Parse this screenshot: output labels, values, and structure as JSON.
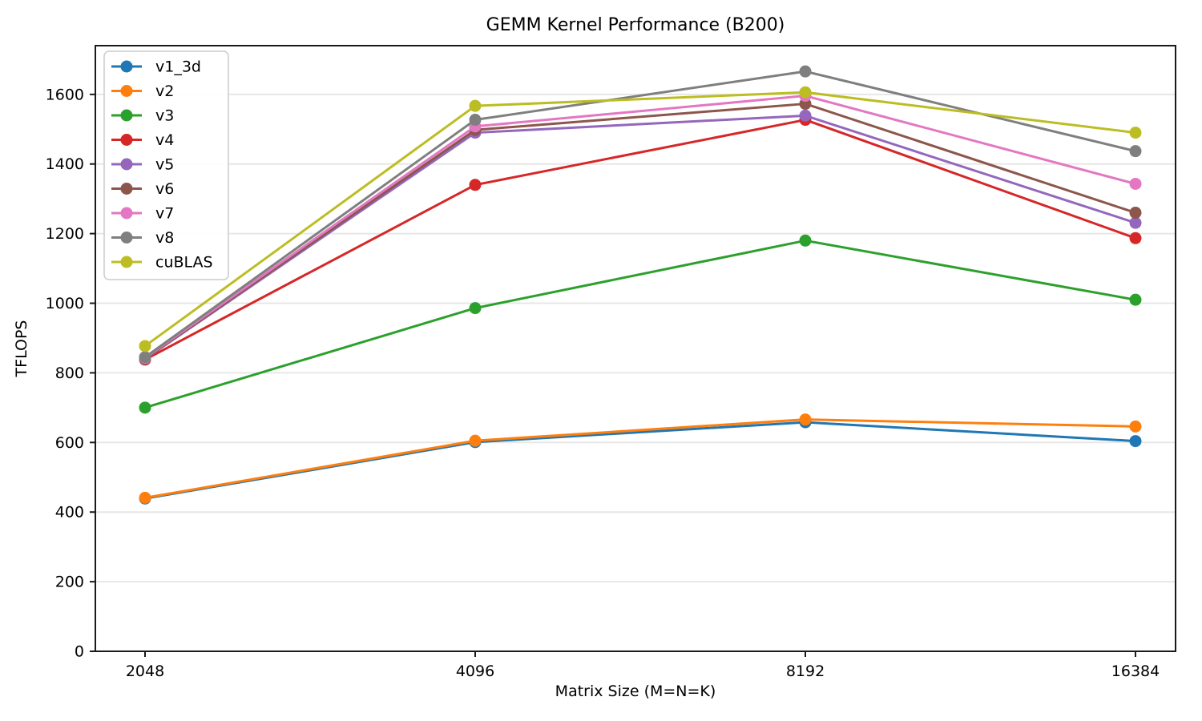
{
  "chart_data": {
    "type": "line",
    "title": "GEMM Kernel Performance (B200)",
    "xlabel": "Matrix Size (M=N=K)",
    "ylabel": "TFLOPS",
    "categories": [
      "2048",
      "4096",
      "8192",
      "16384"
    ],
    "x_values": [
      2048,
      4096,
      8192,
      16384
    ],
    "yticks": [
      0,
      200,
      400,
      600,
      800,
      1000,
      1200,
      1400,
      1600
    ],
    "ylim": [
      0,
      1740
    ],
    "grid": "horizontal-only",
    "grid_color": "#e7e7e7",
    "spine_color": "#1a1a1a",
    "background_color": "#ffffff",
    "legend_position": "upper-left",
    "series": [
      {
        "name": "v1_3d",
        "color": "#1f77b4",
        "values": [
          439,
          601,
          658,
          604
        ]
      },
      {
        "name": "v2",
        "color": "#ff7f0e",
        "values": [
          441,
          605,
          666,
          646
        ]
      },
      {
        "name": "v3",
        "color": "#2ca02c",
        "values": [
          700,
          986,
          1180,
          1010
        ]
      },
      {
        "name": "v4",
        "color": "#d62728",
        "values": [
          838,
          1340,
          1527,
          1187
        ]
      },
      {
        "name": "v5",
        "color": "#9467bd",
        "values": [
          840,
          1490,
          1539,
          1231
        ]
      },
      {
        "name": "v6",
        "color": "#8c564b",
        "values": [
          841,
          1498,
          1573,
          1260
        ]
      },
      {
        "name": "v7",
        "color": "#e377c2",
        "values": [
          843,
          1508,
          1596,
          1343
        ]
      },
      {
        "name": "v8",
        "color": "#7f7f7f",
        "values": [
          845,
          1527,
          1666,
          1437
        ]
      },
      {
        "name": "cuBLAS",
        "color": "#bcbd22",
        "values": [
          877,
          1567,
          1606,
          1490
        ]
      }
    ]
  }
}
